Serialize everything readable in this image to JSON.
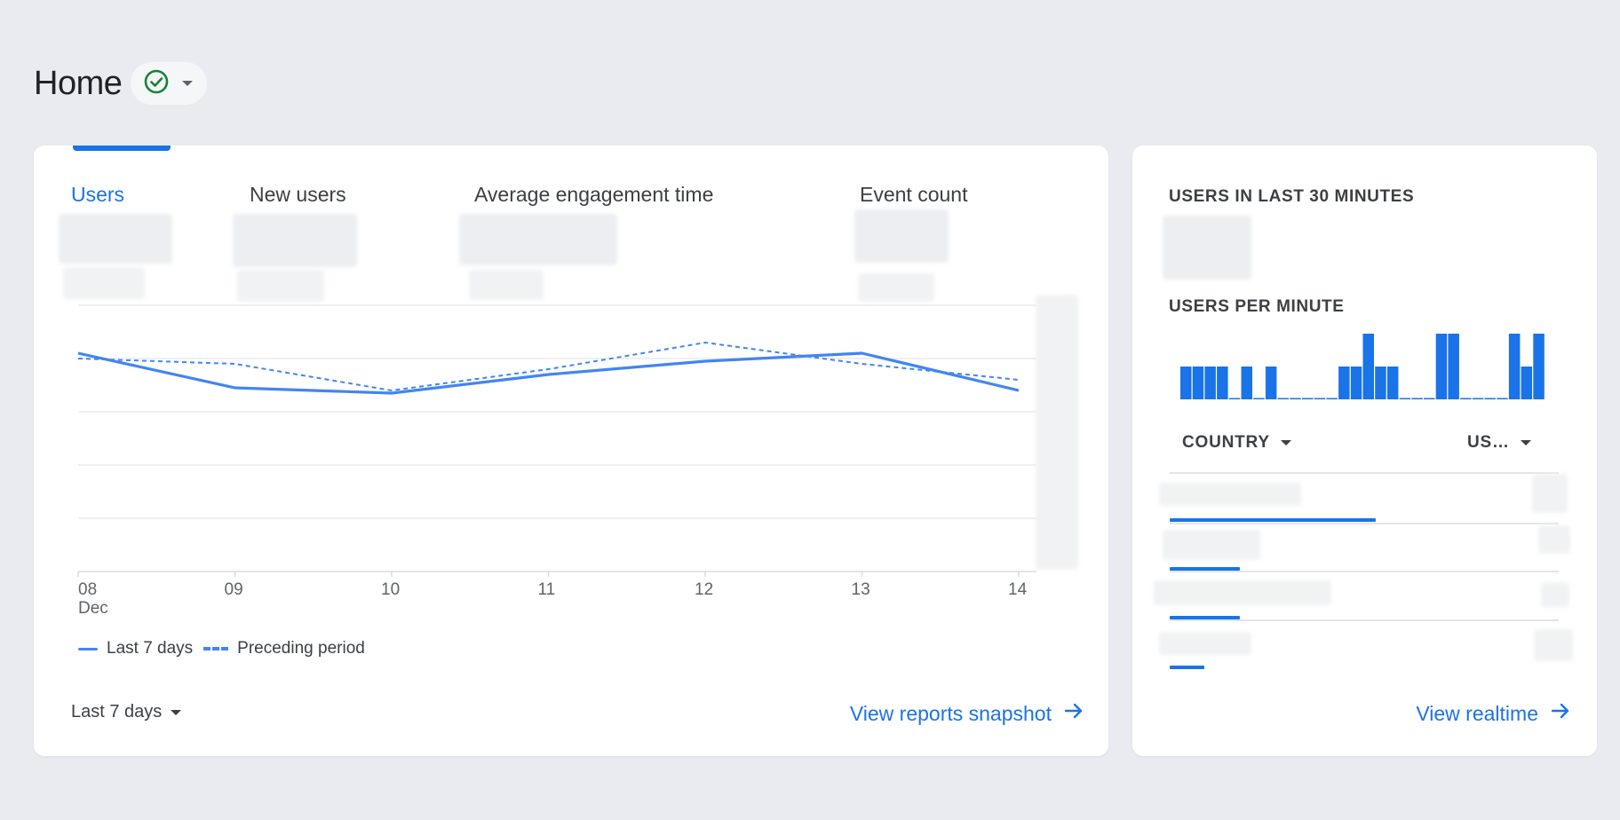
{
  "page": {
    "title": "Home",
    "status_icon": "check-circle-icon",
    "status_color": "#188038",
    "dropdown_icon": "caret-down-icon"
  },
  "metrics": {
    "tabs": [
      {
        "label": "Users",
        "active": true
      },
      {
        "label": "New users",
        "active": false
      },
      {
        "label": "Average engagement time",
        "active": false
      },
      {
        "label": "Event count",
        "active": false
      }
    ]
  },
  "chart_data": {
    "type": "line",
    "categories": [
      "08",
      "09",
      "10",
      "11",
      "12",
      "13",
      "14"
    ],
    "x_sublabel": "Dec",
    "series": [
      {
        "name": "Last 7 days",
        "style": "solid",
        "values": [
          4.1,
          3.45,
          3.35,
          3.7,
          3.95,
          4.1,
          3.4
        ]
      },
      {
        "name": "Preceding period",
        "style": "dashed",
        "values": [
          4.0,
          3.9,
          3.4,
          3.8,
          4.3,
          3.9,
          3.6
        ]
      }
    ],
    "ylim": [
      0,
      5
    ],
    "grid": true,
    "legend_position": "bottom-left",
    "accent": "#4285f4"
  },
  "controls": {
    "date_range_label": "Last 7 days",
    "view_snapshot_label": "View reports snapshot",
    "view_snapshot_icon": "arrow-right-icon"
  },
  "realtime": {
    "users_heading": "USERS IN LAST 30 MINUTES",
    "per_minute_heading": "USERS PER MINUTE",
    "per_minute_values": [
      1,
      1,
      1,
      1,
      0,
      1,
      0,
      1,
      0,
      0,
      0,
      0,
      0,
      1,
      1,
      2,
      1,
      1,
      0,
      0,
      0,
      2,
      2,
      0,
      0,
      0,
      0,
      2,
      1,
      2
    ],
    "table": {
      "col_country": "COUNTRY",
      "col_users": "US…",
      "row_shares": [
        0.53,
        0.18,
        0.18,
        0.09
      ]
    },
    "view_realtime_label": "View realtime",
    "view_realtime_icon": "arrow-right-icon",
    "accent": "#1a73e8"
  }
}
